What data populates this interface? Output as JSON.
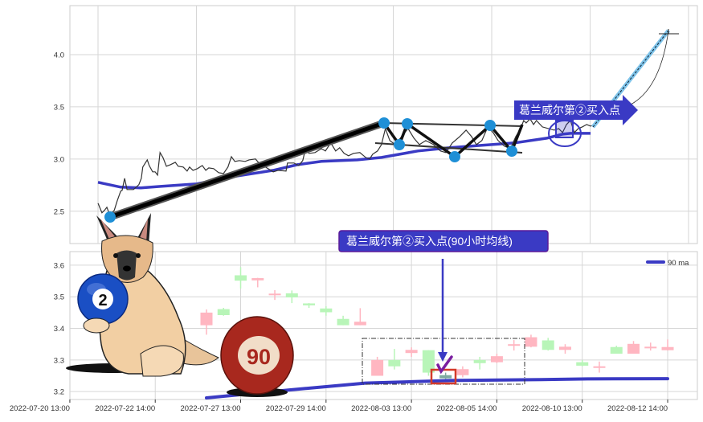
{
  "colors": {
    "price": "#333333",
    "ma": "#3a3ac4",
    "up": "#ffb6c1",
    "down": "#b8f5b8",
    "highlight": "#7fa9a0",
    "annotation_bg": "#3a3ac4",
    "pivot": "#1e8fd6"
  },
  "chart_data": [
    {
      "type": "line",
      "panel": "upper",
      "grid": true,
      "ylim": [
        2.19,
        4.47
      ],
      "yticks": [
        "2.5",
        "3.0",
        "3.5",
        "4.0"
      ],
      "series": [
        {
          "role": "price",
          "x": [
            0,
            0.8,
            1.3,
            1.8,
            2.4,
            3.3,
            3.9,
            4.6,
            4.9,
            5.4,
            5.9,
            7.2,
            8.3,
            8.8,
            9.1,
            10,
            10.4,
            11.1,
            11.6,
            12.1,
            12.6,
            13.2,
            13.9,
            14.7,
            15.7,
            16.3,
            17.3,
            18.1,
            18.6,
            19.3,
            20.2,
            21.2,
            21.9,
            22.5,
            23.5,
            24.5,
            25.5,
            26.4,
            27.1,
            27.8,
            28.7,
            29.9,
            30.7,
            32,
            32.7,
            34,
            35.6,
            36.6,
            38.2,
            38.5,
            39.8,
            40.8,
            41.6,
            42.1,
            42.9,
            44.1,
            45.4,
            46.2,
            47.3,
            48.3,
            49.1,
            50,
            50.9,
            51.9,
            53.2,
            54.4,
            55.2,
            55.8,
            56.8,
            57.6,
            58.4,
            59.3,
            60.4,
            61.7,
            63,
            64.2,
            65.3,
            66.6,
            68.2,
            69.6,
            70.7,
            72,
            73.5,
            74.8,
            75.9,
            76.9,
            78,
            79.2,
            80.3,
            81.3,
            82.6,
            83.8,
            84.9,
            85.9,
            86.5,
            87,
            87.8,
            88.5,
            89.1,
            90.3,
            92.7,
            93.6,
            94.4,
            95.2,
            96,
            96.8,
            97.6,
            98.4,
            99.3,
            100.1,
            100.9
          ],
          "y": [
            2.577,
            2.485,
            2.508,
            2.538,
            2.462,
            2.508,
            2.6,
            2.692,
            2.7,
            2.815,
            2.708,
            2.708,
            2.754,
            2.815,
            2.923,
            2.992,
            2.938,
            2.877,
            2.877,
            2.846,
            3.062,
            3.015,
            2.931,
            2.946,
            2.969,
            2.931,
            2.923,
            2.885,
            2.923,
            2.892,
            2.908,
            2.938,
            2.892,
            2.915,
            2.908,
            2.869,
            2.862,
            2.923,
            3.023,
            2.977,
            2.985,
            2.977,
            2.992,
            3.0,
            2.962,
            2.923,
            2.877,
            2.892,
            2.885,
            2.962,
            2.962,
            2.938,
            2.985,
            3.085,
            3.054,
            3.062,
            3.1,
            3.077,
            3.154,
            3.077,
            3.108,
            3.054,
            3.031,
            3.054,
            3.062,
            3.015,
            3.0,
            3.046,
            3.077,
            3.138,
            3.292,
            3.177,
            3.138,
            3.215,
            3.292,
            3.2,
            3.138,
            3.177,
            3.138,
            3.077,
            3.062,
            3.154,
            3.215,
            3.277,
            3.215,
            3.138,
            3.177,
            3.308,
            3.254,
            3.177,
            3.123,
            3.1,
            3.215,
            3.292,
            3.369,
            3.346,
            3.385,
            3.331,
            3.369,
            3.308,
            3.277,
            3.292,
            3.254,
            3.331,
            3.369,
            3.254,
            3.292,
            3.308,
            3.331,
            3.315,
            3.331
          ]
        },
        {
          "role": "ma",
          "x": [
            0,
            4.6,
            8.7,
            12.7,
            20.1,
            27.4,
            35.6,
            40.5,
            45.4,
            52.7,
            57.6,
            65,
            71.5,
            78,
            84.6,
            91.2,
            94.4,
            96,
            100.1
          ],
          "y": [
            2.777,
            2.731,
            2.723,
            2.738,
            2.762,
            2.831,
            2.892,
            2.946,
            2.977,
            2.992,
            3.015,
            3.077,
            3.108,
            3.131,
            3.154,
            3.2,
            3.238,
            3.246,
            3.246
          ]
        }
      ],
      "annotation": "葛兰威尔第②买入点"
    },
    {
      "type": "candlestick",
      "panel": "lower",
      "grid": true,
      "ylim": [
        3.175,
        3.643
      ],
      "yticks": [
        "3.2",
        "3.3",
        "3.4",
        "3.5",
        "3.6"
      ],
      "xticks": [
        {
          "at": -8,
          "label": "2022-07-20 13:00"
        },
        {
          "at": -3,
          "label": "2022-07-22 14:00"
        },
        {
          "at": 2,
          "label": "2022-07-27 13:00"
        },
        {
          "at": 7,
          "label": "2022-07-29 14:00"
        },
        {
          "at": 12,
          "label": "2022-08-03 13:00"
        },
        {
          "at": 17,
          "label": "2022-08-05 14:00"
        },
        {
          "at": 22,
          "label": "2022-08-10 13:00"
        },
        {
          "at": 27,
          "label": "2022-08-12 14:00"
        }
      ],
      "candles": [
        {
          "o": 3.41,
          "c": 3.45,
          "h": 3.46,
          "l": 3.38
        },
        {
          "o": 3.461,
          "c": 3.442,
          "h": 3.465,
          "l": 3.44
        },
        {
          "o": 3.568,
          "c": 3.551,
          "h": 3.594,
          "l": 3.526
        },
        {
          "o": 3.552,
          "c": 3.559,
          "h": 3.56,
          "l": 3.53
        },
        {
          "o": 3.505,
          "c": 3.51,
          "h": 3.521,
          "l": 3.49
        },
        {
          "o": 3.511,
          "c": 3.498,
          "h": 3.52,
          "l": 3.48
        },
        {
          "o": 3.479,
          "c": 3.473,
          "h": 3.48,
          "l": 3.465
        },
        {
          "o": 3.463,
          "c": 3.451,
          "h": 3.47,
          "l": 3.44
        },
        {
          "o": 3.43,
          "c": 3.41,
          "h": 3.44,
          "l": 3.41
        },
        {
          "o": 3.41,
          "c": 3.421,
          "h": 3.464,
          "l": 3.41
        },
        {
          "o": 3.25,
          "c": 3.3,
          "h": 3.31,
          "l": 3.25
        },
        {
          "o": 3.3,
          "c": 3.28,
          "h": 3.335,
          "l": 3.27
        },
        {
          "o": 3.322,
          "c": 3.332,
          "h": 3.34,
          "l": 3.31
        },
        {
          "o": 3.331,
          "c": 3.26,
          "h": 3.331,
          "l": 3.25
        },
        {
          "o": 3.252,
          "c": 3.242,
          "h": 3.26,
          "l": 3.24,
          "highlight": true
        },
        {
          "o": 3.252,
          "c": 3.271,
          "h": 3.28,
          "l": 3.245
        },
        {
          "o": 3.3,
          "c": 3.29,
          "h": 3.31,
          "l": 3.27
        },
        {
          "o": 3.293,
          "c": 3.312,
          "h": 3.32,
          "l": 3.29
        },
        {
          "o": 3.345,
          "c": 3.35,
          "h": 3.363,
          "l": 3.33
        },
        {
          "o": 3.342,
          "c": 3.372,
          "h": 3.38,
          "l": 3.34
        },
        {
          "o": 3.362,
          "c": 3.332,
          "h": 3.37,
          "l": 3.33
        },
        {
          "o": 3.332,
          "c": 3.342,
          "h": 3.35,
          "l": 3.32
        },
        {
          "o": 3.293,
          "c": 3.282,
          "h": 3.3,
          "l": 3.28
        },
        {
          "o": 3.275,
          "c": 3.28,
          "h": 3.295,
          "l": 3.26
        },
        {
          "o": 3.341,
          "c": 3.32,
          "h": 3.345,
          "l": 3.32
        },
        {
          "o": 3.32,
          "c": 3.351,
          "h": 3.36,
          "l": 3.32
        },
        {
          "o": 3.338,
          "c": 3.342,
          "h": 3.355,
          "l": 3.33
        },
        {
          "o": 3.331,
          "c": 3.341,
          "h": 3.365,
          "l": 3.33
        }
      ],
      "ma": {
        "name": "90 ma",
        "x": [
          0,
          4.8,
          9.3,
          14.3,
          19.6,
          22.3,
          27
        ],
        "y": [
          3.18,
          3.205,
          3.227,
          3.235,
          3.238,
          3.24,
          3.241
        ]
      },
      "legend": "top-right",
      "annotation": "葛兰威尔第②买入点(90小时均线)"
    }
  ],
  "illustration": {
    "dog_ball_number": "2",
    "red_ball_number": "90"
  }
}
